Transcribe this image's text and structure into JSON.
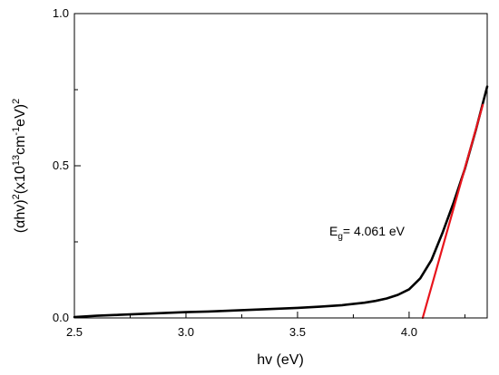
{
  "chart_data": {
    "type": "line",
    "title": "",
    "xlabel": "hv (eV)",
    "ylabel": {
      "prefix": "(",
      "alpha": "α",
      "hv": "hv)",
      "sup1": "2",
      "mid": "(x10",
      "sup2": "13",
      "cm": "cm",
      "sup3": "-1",
      "ev": "eV)",
      "sup4": "2"
    },
    "xlim": [
      2.5,
      4.35
    ],
    "ylim": [
      0,
      1.0
    ],
    "xticks": [
      2.5,
      3.0,
      3.5,
      4.0
    ],
    "xtick_labels": [
      "2.5",
      "3.0",
      "3.5",
      "4.0"
    ],
    "yticks": [
      0.0,
      0.5,
      1.0
    ],
    "ytick_labels": [
      "0.0",
      "0.5",
      "1.0"
    ],
    "grid": false,
    "legend": "none",
    "series": [
      {
        "color": "#000000",
        "x": [
          2.5,
          2.6,
          2.7,
          2.8,
          2.9,
          3.0,
          3.1,
          3.2,
          3.3,
          3.4,
          3.5,
          3.6,
          3.7,
          3.8,
          3.85,
          3.9,
          3.95,
          4.0,
          4.05,
          4.1,
          4.15,
          4.2,
          4.25,
          4.3,
          4.35
        ],
        "y": [
          0.003,
          0.007,
          0.01,
          0.013,
          0.016,
          0.019,
          0.021,
          0.024,
          0.027,
          0.03,
          0.033,
          0.037,
          0.042,
          0.05,
          0.056,
          0.064,
          0.076,
          0.094,
          0.13,
          0.19,
          0.28,
          0.38,
          0.49,
          0.62,
          0.76
        ]
      },
      {
        "color": "#e8141c",
        "x": [
          4.061,
          4.33
        ],
        "y": [
          0.0,
          0.7
        ]
      }
    ],
    "annotation": {
      "e": "E",
      "sub": "g",
      "value": "= 4.061 eV",
      "x": 3.93,
      "y": 0.285
    }
  }
}
